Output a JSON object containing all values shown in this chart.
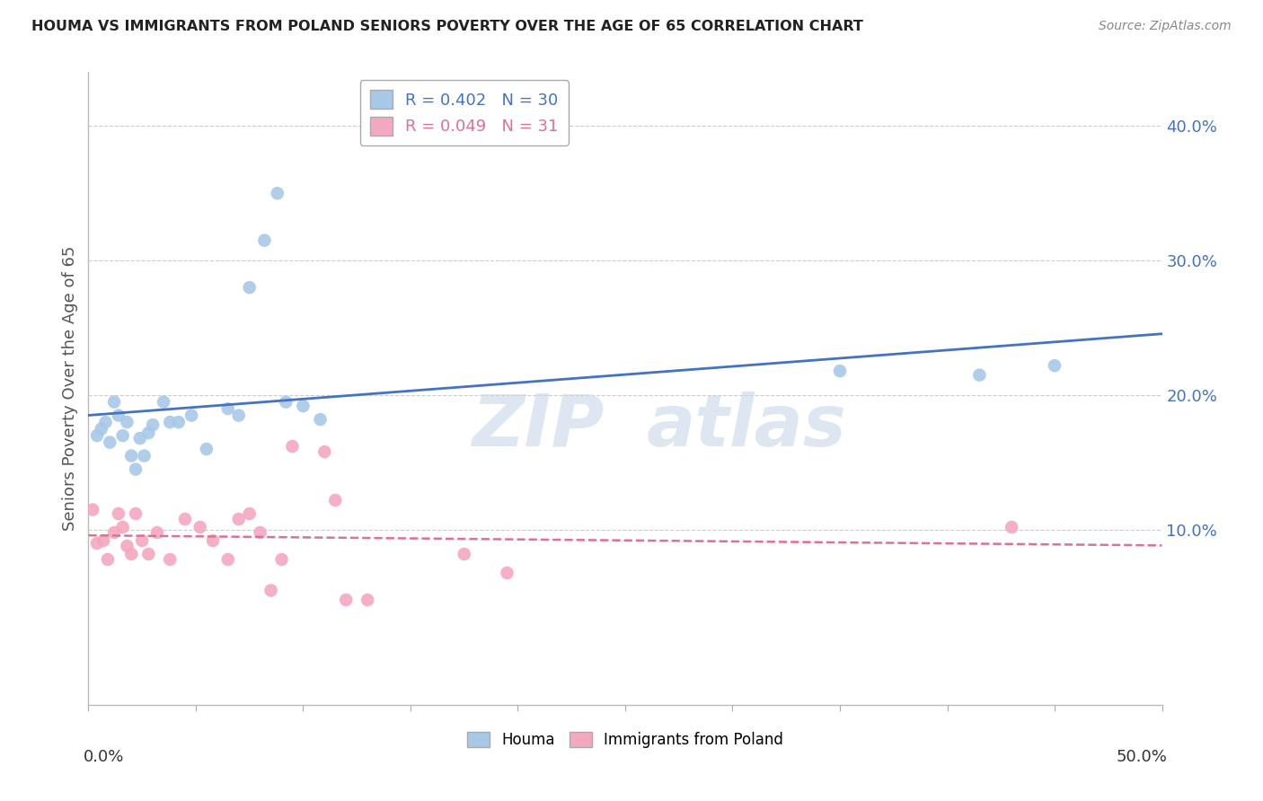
{
  "title": "HOUMA VS IMMIGRANTS FROM POLAND SENIORS POVERTY OVER THE AGE OF 65 CORRELATION CHART",
  "source": "Source: ZipAtlas.com",
  "ylabel": "Seniors Poverty Over the Age of 65",
  "right_ytick_labels": [
    "10.0%",
    "20.0%",
    "30.0%",
    "40.0%"
  ],
  "right_ytick_vals": [
    0.1,
    0.2,
    0.3,
    0.4
  ],
  "xlim": [
    0.0,
    0.5
  ],
  "ylim": [
    -0.03,
    0.44
  ],
  "houma_R": 0.402,
  "houma_N": 30,
  "poland_R": 0.049,
  "poland_N": 31,
  "houma_color": "#a8c8e8",
  "poland_color": "#f4a8c0",
  "houma_line_color": "#4472c4",
  "poland_line_color": "#e07090",
  "background_color": "#ffffff",
  "grid_color": "#cccccc",
  "watermark_text": "ZIP atlas",
  "houma_x": [
    0.004,
    0.006,
    0.008,
    0.01,
    0.012,
    0.014,
    0.016,
    0.018,
    0.02,
    0.022,
    0.024,
    0.026,
    0.028,
    0.03,
    0.035,
    0.038,
    0.042,
    0.048,
    0.055,
    0.065,
    0.07,
    0.075,
    0.082,
    0.088,
    0.092,
    0.1,
    0.108,
    0.35,
    0.415,
    0.45
  ],
  "houma_y": [
    0.17,
    0.175,
    0.18,
    0.165,
    0.195,
    0.185,
    0.17,
    0.18,
    0.155,
    0.145,
    0.168,
    0.155,
    0.172,
    0.178,
    0.195,
    0.18,
    0.18,
    0.185,
    0.16,
    0.19,
    0.185,
    0.28,
    0.315,
    0.35,
    0.195,
    0.192,
    0.182,
    0.218,
    0.215,
    0.222
  ],
  "poland_x": [
    0.002,
    0.004,
    0.007,
    0.009,
    0.012,
    0.014,
    0.016,
    0.018,
    0.02,
    0.022,
    0.025,
    0.028,
    0.032,
    0.038,
    0.045,
    0.052,
    0.058,
    0.065,
    0.07,
    0.075,
    0.08,
    0.085,
    0.09,
    0.095,
    0.11,
    0.115,
    0.12,
    0.13,
    0.175,
    0.195,
    0.43
  ],
  "poland_y": [
    0.115,
    0.09,
    0.092,
    0.078,
    0.098,
    0.112,
    0.102,
    0.088,
    0.082,
    0.112,
    0.092,
    0.082,
    0.098,
    0.078,
    0.108,
    0.102,
    0.092,
    0.078,
    0.108,
    0.112,
    0.098,
    0.055,
    0.078,
    0.162,
    0.158,
    0.122,
    0.048,
    0.048,
    0.082,
    0.068,
    0.102
  ]
}
